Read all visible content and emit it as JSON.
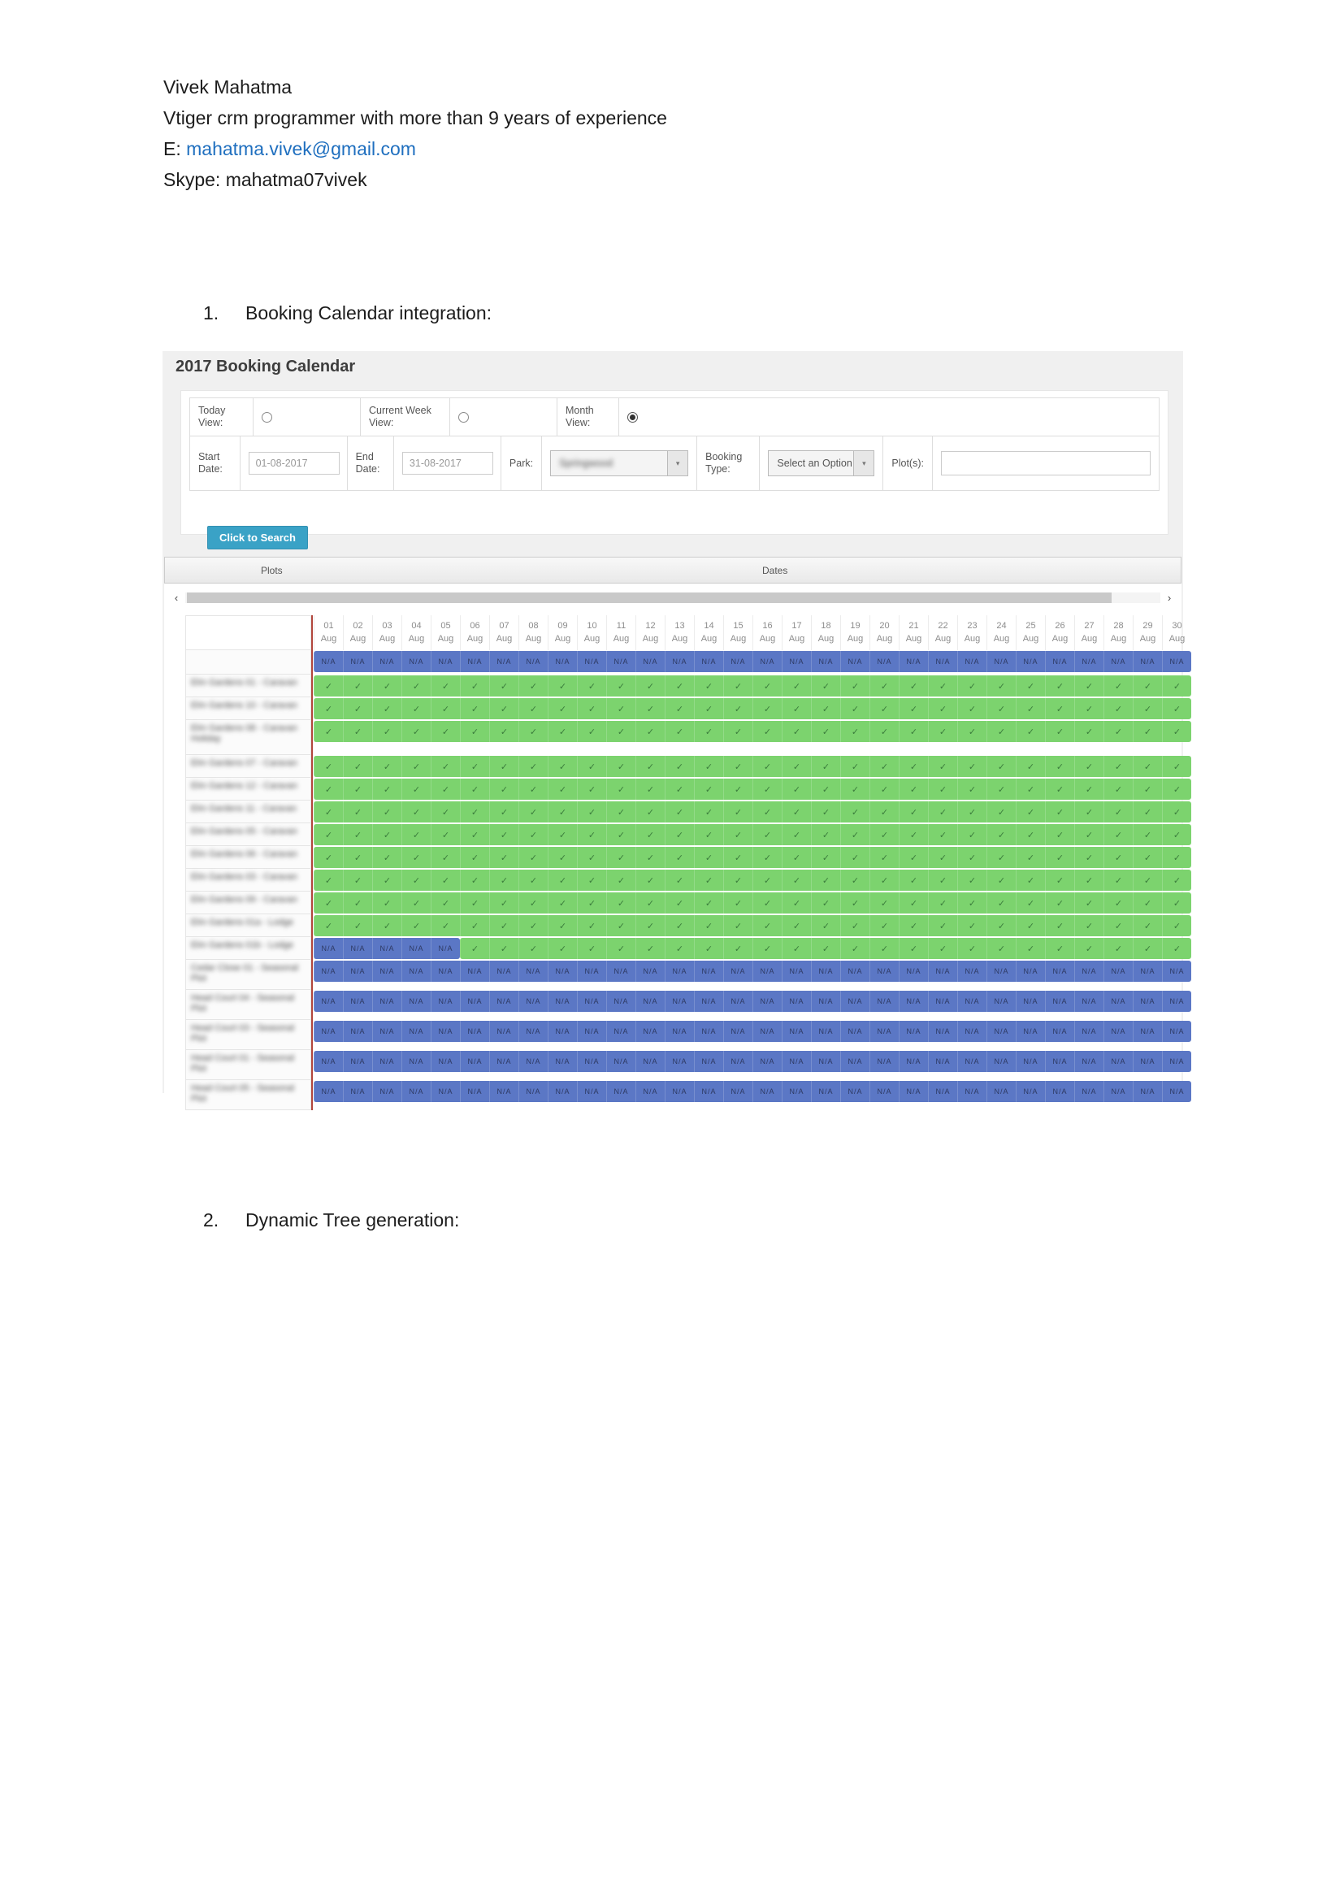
{
  "doc": {
    "name": "Vivek Mahatma",
    "subtitle": "Vtiger crm programmer with more than 9 years of experience",
    "email_prefix": "E: ",
    "email": "mahatma.vivek@gmail.com",
    "skype": "Skype: mahatma07vivek",
    "item1_number": "1.",
    "item1_label": "Booking Calendar integration:",
    "item2_number": "2.",
    "item2_label": "Dynamic Tree generation:"
  },
  "calendar": {
    "title": "2017 Booking Calendar",
    "filters": {
      "today_view_label": "Today View:",
      "current_week_label": "Current Week View:",
      "month_view_label": "Month View:",
      "selected_view": "month",
      "start_date_label": "Start Date:",
      "start_date_value": "01-08-2017",
      "end_date_label": "End Date:",
      "end_date_value": "31-08-2017",
      "park_label": "Park:",
      "park_value": "Springwood",
      "park_value_blurred": true,
      "booking_type_label": "Booking Type:",
      "booking_type_value": "Select an Option",
      "plots_label": "Plot(s):",
      "plots_value": "",
      "search_button": "Click to Search"
    },
    "icons": {
      "select_arrow": "▾",
      "scroll_left": "‹",
      "scroll_right": "›"
    },
    "grid": {
      "plots_header": "Plots",
      "dates_header": "Dates",
      "month": "Aug",
      "days": [
        "01",
        "02",
        "03",
        "04",
        "05",
        "06",
        "07",
        "08",
        "09",
        "10",
        "11",
        "12",
        "13",
        "14",
        "15",
        "16",
        "17",
        "18",
        "19",
        "20",
        "21",
        "22",
        "23",
        "24",
        "25",
        "26",
        "27",
        "28",
        "29",
        "30"
      ],
      "available_glyph": "✓",
      "na_label": "N/A",
      "plot_names_blurred": true,
      "rows": [
        {
          "name": "",
          "type": "na"
        },
        {
          "name": "Elm Gardens 01 - Caravan",
          "type": "ok"
        },
        {
          "name": "Elm Gardens 10 - Caravan",
          "type": "ok"
        },
        {
          "name": "Elm Gardens 08 - Caravan Holiday",
          "type": "ok",
          "two_line": true
        },
        {
          "name": "Elm Gardens 07 - Caravan",
          "type": "ok"
        },
        {
          "name": "Elm Gardens 12 - Caravan",
          "type": "ok"
        },
        {
          "name": "Elm Gardens 11 - Caravan",
          "type": "ok"
        },
        {
          "name": "Elm Gardens 05 - Caravan",
          "type": "ok"
        },
        {
          "name": "Elm Gardens 06 - Caravan",
          "type": "ok"
        },
        {
          "name": "Elm Gardens 03 - Caravan",
          "type": "ok"
        },
        {
          "name": "Elm Gardens 09 - Caravan",
          "type": "ok"
        },
        {
          "name": "Elm Gardens 01a - Lodge",
          "type": "ok"
        },
        {
          "name": "Elm Gardens 01b - Lodge",
          "type": "mixed",
          "na_count": 5
        },
        {
          "name": "Cedar Close 01 - Seasonal Plot",
          "type": "na",
          "two_line": true
        },
        {
          "name": "Head Court 04 - Seasonal Plot",
          "type": "na",
          "two_line": true
        },
        {
          "name": "Head Court 03 - Seasonal Plot",
          "type": "na",
          "two_line": true
        },
        {
          "name": "Head Court 01 - Seasonal Plot",
          "type": "na",
          "two_line": true
        },
        {
          "name": "Head Court 05 - Seasonal Plot",
          "type": "na",
          "two_line": true
        }
      ]
    },
    "colors": {
      "available_green": "#7cd36e",
      "na_blue": "#5b77c5",
      "divider_red": "#b2463c",
      "button_teal": "#3aa2c6",
      "link_blue": "#1f6fbf"
    }
  }
}
